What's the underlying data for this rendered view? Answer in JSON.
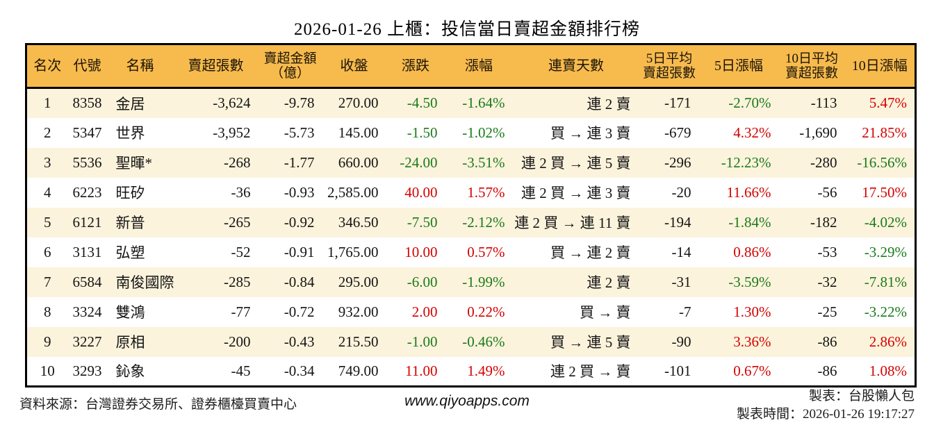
{
  "chart_data": {
    "type": "table",
    "title": "2026-01-26 上櫃：投信當日賣超金額排行榜",
    "columns": [
      {
        "key": "rank",
        "label": "名次"
      },
      {
        "key": "code",
        "label": "代號"
      },
      {
        "key": "name",
        "label": "名稱"
      },
      {
        "key": "sell_volume",
        "label": "賣超張數"
      },
      {
        "key": "sell_amount",
        "label": "賣超金額（億）",
        "lines": [
          "賣超金額",
          "（億）"
        ]
      },
      {
        "key": "close",
        "label": "收盤"
      },
      {
        "key": "change",
        "label": "漲跌"
      },
      {
        "key": "change_pct",
        "label": "漲幅"
      },
      {
        "key": "streak",
        "label": "連賣天數"
      },
      {
        "key": "avg5",
        "label": "5日平均賣超張數",
        "lines": [
          "5日平均",
          "賣超張數"
        ]
      },
      {
        "key": "pct5",
        "label": "5日漲幅"
      },
      {
        "key": "avg10",
        "label": "10日平均賣超張數",
        "lines": [
          "10日平均",
          "賣超張數"
        ]
      },
      {
        "key": "pct10",
        "label": "10日漲幅"
      }
    ],
    "rows": [
      {
        "rank": "1",
        "code": "8358",
        "name": "金居",
        "sell_volume": "-3,624",
        "sell_amount": "-9.78",
        "close": "270.00",
        "change": "-4.50",
        "change_pct": "-1.64%",
        "streak": "連 2 賣",
        "avg5": "-171",
        "pct5": "-2.70%",
        "avg10": "-113",
        "pct10": "5.47%"
      },
      {
        "rank": "2",
        "code": "5347",
        "name": "世界",
        "sell_volume": "-3,952",
        "sell_amount": "-5.73",
        "close": "145.00",
        "change": "-1.50",
        "change_pct": "-1.02%",
        "streak": "買 → 連 3 賣",
        "avg5": "-679",
        "pct5": "4.32%",
        "avg10": "-1,690",
        "pct10": "21.85%"
      },
      {
        "rank": "3",
        "code": "5536",
        "name": "聖暉*",
        "sell_volume": "-268",
        "sell_amount": "-1.77",
        "close": "660.00",
        "change": "-24.00",
        "change_pct": "-3.51%",
        "streak": "連 2 買 → 連 5 賣",
        "avg5": "-296",
        "pct5": "-12.23%",
        "avg10": "-280",
        "pct10": "-16.56%"
      },
      {
        "rank": "4",
        "code": "6223",
        "name": "旺矽",
        "sell_volume": "-36",
        "sell_amount": "-0.93",
        "close": "2,585.00",
        "change": "40.00",
        "change_pct": "1.57%",
        "streak": "連 2 買 → 連 3 賣",
        "avg5": "-20",
        "pct5": "11.66%",
        "avg10": "-56",
        "pct10": "17.50%"
      },
      {
        "rank": "5",
        "code": "6121",
        "name": "新普",
        "sell_volume": "-265",
        "sell_amount": "-0.92",
        "close": "346.50",
        "change": "-7.50",
        "change_pct": "-2.12%",
        "streak": "連 2 買 → 連 11 賣",
        "avg5": "-194",
        "pct5": "-1.84%",
        "avg10": "-182",
        "pct10": "-4.02%"
      },
      {
        "rank": "6",
        "code": "3131",
        "name": "弘塑",
        "sell_volume": "-52",
        "sell_amount": "-0.91",
        "close": "1,765.00",
        "change": "10.00",
        "change_pct": "0.57%",
        "streak": "買 → 連 2 賣",
        "avg5": "-14",
        "pct5": "0.86%",
        "avg10": "-53",
        "pct10": "-3.29%"
      },
      {
        "rank": "7",
        "code": "6584",
        "name": "南俊國際",
        "sell_volume": "-285",
        "sell_amount": "-0.84",
        "close": "295.00",
        "change": "-6.00",
        "change_pct": "-1.99%",
        "streak": "連 2 賣",
        "avg5": "-31",
        "pct5": "-3.59%",
        "avg10": "-32",
        "pct10": "-7.81%"
      },
      {
        "rank": "8",
        "code": "3324",
        "name": "雙鴻",
        "sell_volume": "-77",
        "sell_amount": "-0.72",
        "close": "932.00",
        "change": "2.00",
        "change_pct": "0.22%",
        "streak": "買 → 賣",
        "avg5": "-7",
        "pct5": "1.30%",
        "avg10": "-25",
        "pct10": "-3.22%"
      },
      {
        "rank": "9",
        "code": "3227",
        "name": "原相",
        "sell_volume": "-200",
        "sell_amount": "-0.43",
        "close": "215.50",
        "change": "-1.00",
        "change_pct": "-0.46%",
        "streak": "買 → 連 5 賣",
        "avg5": "-90",
        "pct5": "3.36%",
        "avg10": "-86",
        "pct10": "2.86%"
      },
      {
        "rank": "10",
        "code": "3293",
        "name": "鈊象",
        "sell_volume": "-45",
        "sell_amount": "-0.34",
        "close": "749.00",
        "change": "11.00",
        "change_pct": "1.49%",
        "streak": "連 2 買 → 賣",
        "avg5": "-101",
        "pct5": "0.67%",
        "avg10": "-86",
        "pct10": "1.08%"
      }
    ],
    "layout_hints": {
      "stripe": "odd-rows-cream",
      "up_color_means": "price rise (red)",
      "down_color_means": "price fall (green)"
    }
  },
  "colors": {
    "up": "#d40000",
    "down": "#1a7a1a",
    "header_bg": "#f7ba4d",
    "stripe_bg": "#fcf3dc",
    "border": "#000000"
  },
  "footer": {
    "source": "資料來源：台灣證券交易所、證券櫃檯買賣中心",
    "website": "www.qiyoapps.com",
    "made_by": "製表：台股懶人包",
    "made_time": "製表時間：2026-01-26 19:17:27"
  }
}
